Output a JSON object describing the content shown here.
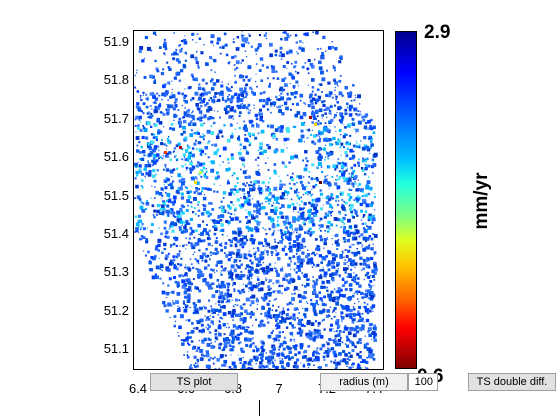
{
  "map": {
    "y_ticks": [
      "51.9",
      "51.8",
      "51.7",
      "51.6",
      "51.5",
      "51.4",
      "51.3",
      "51.2",
      "51.1"
    ],
    "x_ticks": [
      "6.4",
      "6.6",
      "6.8",
      "7",
      "7.2",
      "7.4"
    ],
    "x_range": [
      6.4,
      7.4
    ],
    "y_range": [
      51.03,
      51.92
    ]
  },
  "colorbar": {
    "max_label": "2.9",
    "min_label": "0.6",
    "unit": "mm/yr"
  },
  "controls": {
    "ts_plot_label": "TS plot",
    "radius_label": "radius (m)",
    "radius_value": "100",
    "ts_double_diff_label": "TS double diff."
  }
}
